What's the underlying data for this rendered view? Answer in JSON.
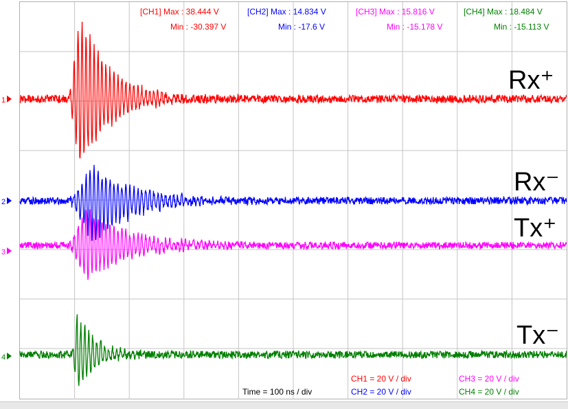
{
  "chart_data": {
    "type": "line",
    "title": "",
    "xlabel": "",
    "ylabel": "",
    "grid": true,
    "grid_divisions": {
      "x": 10,
      "y": 8
    },
    "time_base": "Time = 100 ns / div",
    "series": [
      {
        "name": "Rx+",
        "channel": "CH1",
        "color": "#ff0000",
        "marker": "1",
        "max_label": "[CH1]  Max : 38.444 V",
        "min_label": "Min : -30.397 V",
        "scale_label": "CH1 = 20 V / div",
        "max_v": 38.444,
        "min_v": -30.397,
        "volts_per_div": 20,
        "burst_start_div": 0.9,
        "burst_peak_div": 1.1,
        "decay_div": 0.55,
        "noise_v": 1.6
      },
      {
        "name": "Rx-",
        "channel": "CH2",
        "color": "#0000ff",
        "marker": "2",
        "max_label": "[CH2]  Max : 14.834 V",
        "min_label": "Min : -17.6 V",
        "scale_label": "CH2 = 20 V / div",
        "max_v": 14.834,
        "min_v": -17.6,
        "volts_per_div": 20,
        "burst_start_div": 0.9,
        "burst_peak_div": 1.35,
        "decay_div": 0.75,
        "noise_v": 1.5
      },
      {
        "name": "Tx+",
        "channel": "CH3",
        "color": "#ff00ff",
        "marker": "3",
        "max_label": "[CH3]  Max : 15.816 V",
        "min_label": "Min : -15.178 V",
        "scale_label": "CH3 = 20 V / div",
        "max_v": 15.816,
        "min_v": -15.178,
        "volts_per_div": 20,
        "burst_start_div": 0.9,
        "burst_peak_div": 1.2,
        "decay_div": 0.8,
        "noise_v": 1.4
      },
      {
        "name": "Tx-",
        "channel": "CH4",
        "color": "#008000",
        "marker": "4",
        "max_label": "[CH4]  Max : 18.484 V",
        "min_label": "Min : -15.113 V",
        "scale_label": "CH4 = 20 V / div",
        "max_v": 18.484,
        "min_v": -15.113,
        "volts_per_div": 20,
        "burst_start_div": 0.95,
        "burst_peak_div": 1.05,
        "decay_div": 0.35,
        "noise_v": 1.5
      }
    ]
  },
  "labels": {
    "rx_plus": "Rx⁺",
    "rx_minus": "Rx⁻",
    "tx_plus": "Tx⁺",
    "tx_minus": "Tx⁻"
  }
}
